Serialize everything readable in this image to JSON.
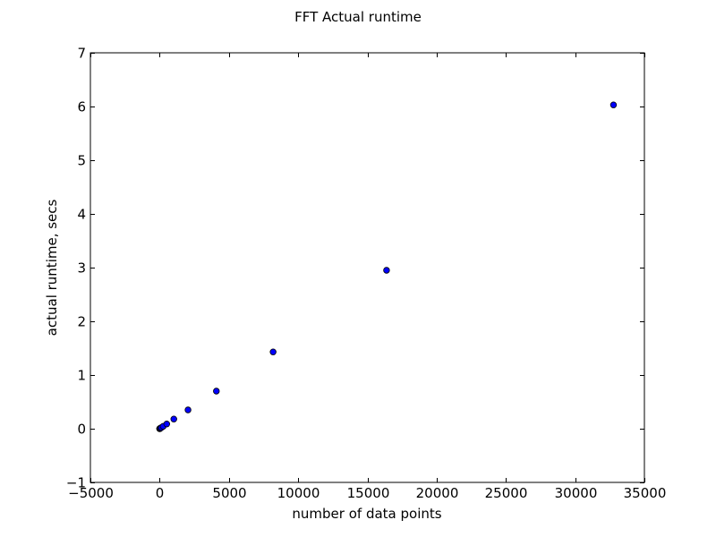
{
  "chart_data": {
    "type": "scatter",
    "title": "FFT Actual runtime",
    "xlabel": "number of data points",
    "ylabel": "actual runtime, secs",
    "xlim": [
      -5000,
      35000
    ],
    "ylim": [
      -1,
      7
    ],
    "x_ticks": [
      -5000,
      0,
      5000,
      10000,
      15000,
      20000,
      25000,
      30000,
      35000
    ],
    "y_ticks": [
      -1,
      0,
      1,
      2,
      3,
      4,
      5,
      6,
      7
    ],
    "x_tick_labels": [
      "−5000",
      "0",
      "5000",
      "10000",
      "15000",
      "20000",
      "25000",
      "30000",
      "35000"
    ],
    "y_tick_labels": [
      "−1",
      "0",
      "1",
      "2",
      "3",
      "4",
      "5",
      "6",
      "7"
    ],
    "grid": false,
    "marker_color": "#0000ff",
    "marker_edge_color": "#000000",
    "series": [
      {
        "x": [
          2,
          4,
          8,
          16,
          32,
          64,
          128,
          256,
          512,
          1024,
          2048,
          4096,
          8192,
          16384,
          32768
        ],
        "y": [
          0.0004,
          0.0008,
          0.0015,
          0.003,
          0.006,
          0.011,
          0.022,
          0.044,
          0.088,
          0.18,
          0.35,
          0.7,
          1.43,
          2.95,
          6.03
        ]
      }
    ]
  }
}
